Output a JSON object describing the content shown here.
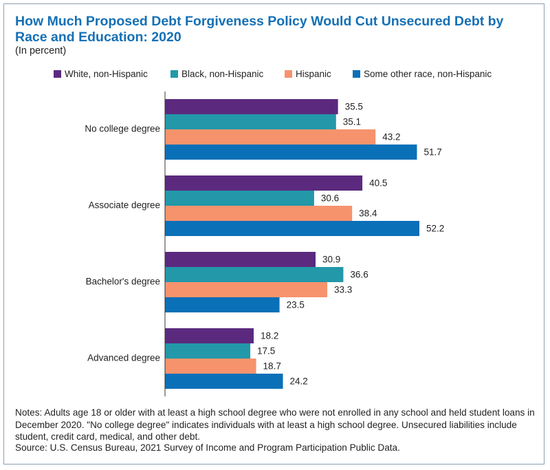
{
  "chart_data": {
    "type": "bar",
    "orientation": "horizontal",
    "title": "How Much Proposed Debt Forgiveness Policy Would Cut Unsecured Debt by Race and Education: 2020",
    "subtitle": "(In percent)",
    "categories": [
      "No college degree",
      "Associate degree",
      "Bachelor's degree",
      "Advanced degree"
    ],
    "series": [
      {
        "name": "White, non-Hispanic",
        "color": "#5b2a7f",
        "values": [
          35.5,
          40.5,
          30.9,
          18.2
        ]
      },
      {
        "name": "Black, non-Hispanic",
        "color": "#2298a9",
        "values": [
          35.1,
          30.6,
          36.6,
          17.5
        ]
      },
      {
        "name": "Hispanic",
        "color": "#f6936d",
        "values": [
          43.2,
          38.4,
          33.3,
          18.7
        ]
      },
      {
        "name": "Some other race, non-Hispanic",
        "color": "#0a70b8",
        "values": [
          51.7,
          52.2,
          23.5,
          24.2
        ]
      }
    ],
    "legend": "top",
    "notes": "Notes: Adults age 18 or older with at least a high school degree who were not enrolled in any school and held student loans in December 2020. \"No college degree\" indicates individuals with at least a high school degree. Unsecured liabilities include student, credit card, medical, and other debt.",
    "source": "Source: U.S. Census Bureau, 2021 Survey of Income and Program Participation Public Data."
  }
}
